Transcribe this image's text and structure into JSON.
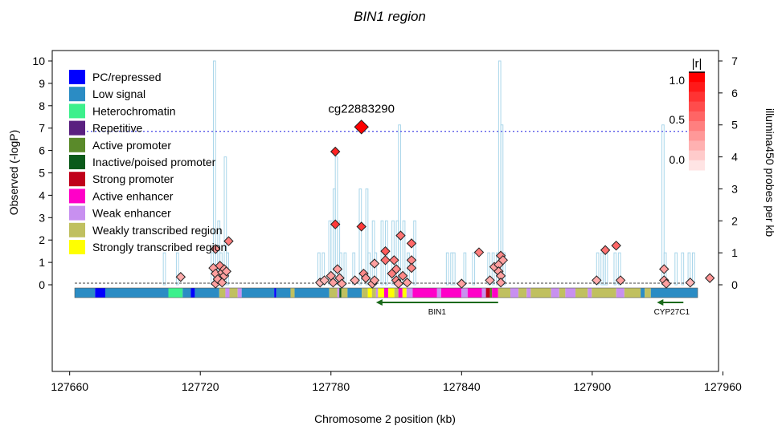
{
  "chart_data": {
    "type": "scatter",
    "title": "BIN1 region",
    "xlabel": "Chromosome 2 position (kb)",
    "ylabel": "Observed (-logP)",
    "ylabel_right": "illumina450 probes per kb",
    "xlim": [
      127652,
      127958
    ],
    "ylim": [
      -4,
      10.3
    ],
    "ylim_right": [
      0,
      7
    ],
    "x_ticks": [
      "127660",
      "127720",
      "127780",
      "127840",
      "127900",
      "127960"
    ],
    "y_ticks": [
      "0",
      "1",
      "2",
      "3",
      "4",
      "5",
      "6",
      "7",
      "8",
      "9",
      "10"
    ],
    "y_ticks_right": [
      "0",
      "1",
      "2",
      "3",
      "4",
      "5",
      "6",
      "7"
    ],
    "threshold": 7.0,
    "grid": false,
    "top_snp": {
      "label": "cg22883290",
      "x": 127794,
      "y": 7.05,
      "color": "#ff0000"
    },
    "points": [
      {
        "x": 127711,
        "y": 0.35,
        "r": 0.25
      },
      {
        "x": 127726,
        "y": 0.75,
        "r": 0.3
      },
      {
        "x": 127727,
        "y": 1.6,
        "r": 0.35
      },
      {
        "x": 127727,
        "y": 0.5,
        "r": 0.3
      },
      {
        "x": 127727,
        "y": 0.05,
        "r": 0.3
      },
      {
        "x": 127728,
        "y": 0.25,
        "r": 0.3
      },
      {
        "x": 127729,
        "y": 0.85,
        "r": 0.4
      },
      {
        "x": 127730,
        "y": 0.55,
        "r": 0.3
      },
      {
        "x": 127731,
        "y": 0.7,
        "r": 0.3
      },
      {
        "x": 127731,
        "y": 0.4,
        "r": 0.3
      },
      {
        "x": 127732,
        "y": 0.6,
        "r": 0.3
      },
      {
        "x": 127730,
        "y": 0.1,
        "r": 0.3
      },
      {
        "x": 127733,
        "y": 1.95,
        "r": 0.45
      },
      {
        "x": 127775,
        "y": 0.1,
        "r": 0.2
      },
      {
        "x": 127777,
        "y": 0.2,
        "r": 0.2
      },
      {
        "x": 127780,
        "y": 0.4,
        "r": 0.3
      },
      {
        "x": 127781,
        "y": 0.1,
        "r": 0.3
      },
      {
        "x": 127782,
        "y": 5.95,
        "r": 0.85
      },
      {
        "x": 127782,
        "y": 2.7,
        "r": 0.75
      },
      {
        "x": 127783,
        "y": 0.7,
        "r": 0.3
      },
      {
        "x": 127784,
        "y": 0.3,
        "r": 0.3
      },
      {
        "x": 127785,
        "y": 0.05,
        "r": 0.3
      },
      {
        "x": 127791,
        "y": 0.2,
        "r": 0.25
      },
      {
        "x": 127794,
        "y": 2.6,
        "r": 0.75
      },
      {
        "x": 127795,
        "y": 0.5,
        "r": 0.4
      },
      {
        "x": 127796,
        "y": 0.3,
        "r": 0.35
      },
      {
        "x": 127799,
        "y": 0.05,
        "r": 0.3
      },
      {
        "x": 127800,
        "y": 0.2,
        "r": 0.3
      },
      {
        "x": 127800,
        "y": 0.95,
        "r": 0.3
      },
      {
        "x": 127805,
        "y": 1.5,
        "r": 0.6
      },
      {
        "x": 127805,
        "y": 1.1,
        "r": 0.5
      },
      {
        "x": 127808,
        "y": 0.5,
        "r": 0.45
      },
      {
        "x": 127809,
        "y": 1.1,
        "r": 0.45
      },
      {
        "x": 127810,
        "y": 0.2,
        "r": 0.4
      },
      {
        "x": 127810,
        "y": 0.7,
        "r": 0.4
      },
      {
        "x": 127811,
        "y": 0.05,
        "r": 0.3
      },
      {
        "x": 127812,
        "y": 2.2,
        "r": 0.5
      },
      {
        "x": 127813,
        "y": 0.4,
        "r": 0.4
      },
      {
        "x": 127815,
        "y": 0.1,
        "r": 0.3
      },
      {
        "x": 127817,
        "y": 1.85,
        "r": 0.55
      },
      {
        "x": 127817,
        "y": 1.1,
        "r": 0.4
      },
      {
        "x": 127817,
        "y": 0.75,
        "r": 0.4
      },
      {
        "x": 127840,
        "y": 0.05,
        "r": 0.3
      },
      {
        "x": 127848,
        "y": 1.45,
        "r": 0.45
      },
      {
        "x": 127853,
        "y": 0.2,
        "r": 0.25
      },
      {
        "x": 127855,
        "y": 0.8,
        "r": 0.3
      },
      {
        "x": 127857,
        "y": 0.9,
        "r": 0.3
      },
      {
        "x": 127857,
        "y": 0.6,
        "r": 0.3
      },
      {
        "x": 127858,
        "y": 1.3,
        "r": 0.4
      },
      {
        "x": 127858,
        "y": 0.4,
        "r": 0.3
      },
      {
        "x": 127858,
        "y": 0.1,
        "r": 0.3
      },
      {
        "x": 127859,
        "y": 1.1,
        "r": 0.3
      },
      {
        "x": 127902,
        "y": 0.2,
        "r": 0.25
      },
      {
        "x": 127906,
        "y": 1.55,
        "r": 0.5
      },
      {
        "x": 127911,
        "y": 1.75,
        "r": 0.55
      },
      {
        "x": 127913,
        "y": 0.2,
        "r": 0.3
      },
      {
        "x": 127933,
        "y": 0.7,
        "r": 0.3
      },
      {
        "x": 127933,
        "y": 0.2,
        "r": 0.3
      },
      {
        "x": 127934,
        "y": 0.05,
        "r": 0.3
      },
      {
        "x": 127945,
        "y": 0.1,
        "r": 0.2
      },
      {
        "x": 127954,
        "y": 0.3,
        "r": 0.35
      }
    ],
    "probe_density": {
      "color": "#a9d6ea",
      "bins": [
        {
          "x0": 127703,
          "x1": 127704,
          "v": 1.0
        },
        {
          "x0": 127709,
          "x1": 127710,
          "v": 1.0
        },
        {
          "x0": 127725,
          "x1": 127726,
          "v": 1.0
        },
        {
          "x0": 127726,
          "x1": 127727,
          "v": 7.0
        },
        {
          "x0": 127727,
          "x1": 127728,
          "v": 1.0
        },
        {
          "x0": 127728,
          "x1": 127729,
          "v": 2.0
        },
        {
          "x0": 127729,
          "x1": 127730,
          "v": 1.0
        },
        {
          "x0": 127731,
          "x1": 127732,
          "v": 4.0
        },
        {
          "x0": 127732,
          "x1": 127733,
          "v": 1.0
        },
        {
          "x0": 127774,
          "x1": 127775,
          "v": 1.0
        },
        {
          "x0": 127776,
          "x1": 127777,
          "v": 1.0
        },
        {
          "x0": 127779,
          "x1": 127780,
          "v": 2.0
        },
        {
          "x0": 127780,
          "x1": 127781,
          "v": 2.0
        },
        {
          "x0": 127781,
          "x1": 127782,
          "v": 3.0
        },
        {
          "x0": 127782,
          "x1": 127783,
          "v": 4.0
        },
        {
          "x0": 127783,
          "x1": 127784,
          "v": 2.0
        },
        {
          "x0": 127784,
          "x1": 127785,
          "v": 1.0
        },
        {
          "x0": 127786,
          "x1": 127787,
          "v": 1.0
        },
        {
          "x0": 127790,
          "x1": 127791,
          "v": 1.0
        },
        {
          "x0": 127793,
          "x1": 127794,
          "v": 3.0
        },
        {
          "x0": 127796,
          "x1": 127797,
          "v": 3.0
        },
        {
          "x0": 127797,
          "x1": 127798,
          "v": 1.0
        },
        {
          "x0": 127799,
          "x1": 127800,
          "v": 2.0
        },
        {
          "x0": 127800,
          "x1": 127801,
          "v": 1.0
        },
        {
          "x0": 127803,
          "x1": 127804,
          "v": 2.0
        },
        {
          "x0": 127805,
          "x1": 127806,
          "v": 2.0
        },
        {
          "x0": 127808,
          "x1": 127809,
          "v": 2.0
        },
        {
          "x0": 127810,
          "x1": 127811,
          "v": 2.0
        },
        {
          "x0": 127811,
          "x1": 127812,
          "v": 5.0
        },
        {
          "x0": 127813,
          "x1": 127814,
          "v": 2.0
        },
        {
          "x0": 127815,
          "x1": 127816,
          "v": 1.0
        },
        {
          "x0": 127818,
          "x1": 127819,
          "v": 2.0
        },
        {
          "x0": 127833,
          "x1": 127834,
          "v": 1.0
        },
        {
          "x0": 127835,
          "x1": 127836,
          "v": 1.0
        },
        {
          "x0": 127836,
          "x1": 127837,
          "v": 1.0
        },
        {
          "x0": 127841,
          "x1": 127842,
          "v": 1.0
        },
        {
          "x0": 127845,
          "x1": 127846,
          "v": 1.0
        },
        {
          "x0": 127852,
          "x1": 127853,
          "v": 1.0
        },
        {
          "x0": 127854,
          "x1": 127855,
          "v": 1.0
        },
        {
          "x0": 127856,
          "x1": 127857,
          "v": 1.0
        },
        {
          "x0": 127857,
          "x1": 127858,
          "v": 7.0
        },
        {
          "x0": 127858,
          "x1": 127859,
          "v": 5.0
        },
        {
          "x0": 127859,
          "x1": 127860,
          "v": 1.0
        },
        {
          "x0": 127902,
          "x1": 127903,
          "v": 1.0
        },
        {
          "x0": 127904,
          "x1": 127905,
          "v": 1.0
        },
        {
          "x0": 127905,
          "x1": 127906,
          "v": 1.0
        },
        {
          "x0": 127906,
          "x1": 127907,
          "v": 1.0
        },
        {
          "x0": 127910,
          "x1": 127911,
          "v": 1.0
        },
        {
          "x0": 127912,
          "x1": 127913,
          "v": 1.0
        },
        {
          "x0": 127932,
          "x1": 127933,
          "v": 5.0
        },
        {
          "x0": 127933,
          "x1": 127934,
          "v": 1.0
        },
        {
          "x0": 127938,
          "x1": 127939,
          "v": 1.0
        },
        {
          "x0": 127941,
          "x1": 127942,
          "v": 1.0
        },
        {
          "x0": 127944,
          "x1": 127945,
          "v": 1.0
        },
        {
          "x0": 127946,
          "x1": 127947,
          "v": 1.0
        }
      ]
    },
    "chromatin_track": [
      {
        "x0": 127652,
        "x1": 127662,
        "state": "Low signal"
      },
      {
        "x0": 127662,
        "x1": 127667,
        "state": "PC/repressed"
      },
      {
        "x0": 127667,
        "x1": 127698,
        "state": "Low signal"
      },
      {
        "x0": 127698,
        "x1": 127705,
        "state": "Heterochromatin"
      },
      {
        "x0": 127705,
        "x1": 127709,
        "state": "Low signal"
      },
      {
        "x0": 127709,
        "x1": 127711,
        "state": "PC/repressed"
      },
      {
        "x0": 127711,
        "x1": 127723,
        "state": "Low signal"
      },
      {
        "x0": 127723,
        "x1": 127726,
        "state": "Weakly transcribed region"
      },
      {
        "x0": 127726,
        "x1": 127728,
        "state": "Weak enhancer"
      },
      {
        "x0": 127728,
        "x1": 127732,
        "state": "Weakly transcribed region"
      },
      {
        "x0": 127732,
        "x1": 127734,
        "state": "Weak enhancer"
      },
      {
        "x0": 127734,
        "x1": 127750,
        "state": "Low signal"
      },
      {
        "x0": 127750,
        "x1": 127751,
        "state": "PC/repressed"
      },
      {
        "x0": 127751,
        "x1": 127758,
        "state": "Low signal"
      },
      {
        "x0": 127758,
        "x1": 127760,
        "state": "Weakly transcribed region"
      },
      {
        "x0": 127760,
        "x1": 127777,
        "state": "Low signal"
      },
      {
        "x0": 127777,
        "x1": 127781,
        "state": "Weakly transcribed region"
      },
      {
        "x0": 127781,
        "x1": 127782,
        "state": "Weak enhancer"
      },
      {
        "x0": 127782,
        "x1": 127783,
        "state": "Inactive/poised promoter"
      },
      {
        "x0": 127783,
        "x1": 127786,
        "state": "Weakly transcribed region"
      },
      {
        "x0": 127786,
        "x1": 127793,
        "state": "Low signal"
      },
      {
        "x0": 127793,
        "x1": 127796,
        "state": "Weakly transcribed region"
      },
      {
        "x0": 127796,
        "x1": 127798,
        "state": "Strongly transcribed region"
      },
      {
        "x0": 127798,
        "x1": 127800,
        "state": "Weakly transcribed region"
      },
      {
        "x0": 127800,
        "x1": 127801,
        "state": "Weak enhancer"
      },
      {
        "x0": 127801,
        "x1": 127804,
        "state": "Strongly transcribed region"
      },
      {
        "x0": 127804,
        "x1": 127806,
        "state": "Active enhancer"
      },
      {
        "x0": 127806,
        "x1": 127809,
        "state": "Strongly transcribed region"
      },
      {
        "x0": 127809,
        "x1": 127811,
        "state": "Weakly transcribed region"
      },
      {
        "x0": 127811,
        "x1": 127813,
        "state": "Active enhancer"
      },
      {
        "x0": 127813,
        "x1": 127815,
        "state": "Strongly transcribed region"
      },
      {
        "x0": 127815,
        "x1": 127818,
        "state": "Weak enhancer"
      },
      {
        "x0": 127818,
        "x1": 127830,
        "state": "Active enhancer"
      },
      {
        "x0": 127830,
        "x1": 127832,
        "state": "Weak enhancer"
      },
      {
        "x0": 127832,
        "x1": 127842,
        "state": "Active enhancer"
      },
      {
        "x0": 127842,
        "x1": 127845,
        "state": "Weak enhancer"
      },
      {
        "x0": 127845,
        "x1": 127852,
        "state": "Active enhancer"
      },
      {
        "x0": 127852,
        "x1": 127854,
        "state": "Weak enhancer"
      },
      {
        "x0": 127854,
        "x1": 127856,
        "state": "Strong promoter"
      },
      {
        "x0": 127856,
        "x1": 127857,
        "state": "Active promoter"
      },
      {
        "x0": 127857,
        "x1": 127860,
        "state": "Active enhancer"
      },
      {
        "x0": 127860,
        "x1": 127866,
        "state": "Weakly transcribed region"
      },
      {
        "x0": 127866,
        "x1": 127870,
        "state": "Weak enhancer"
      },
      {
        "x0": 127870,
        "x1": 127874,
        "state": "Weakly transcribed region"
      },
      {
        "x0": 127874,
        "x1": 127876,
        "state": "Weak enhancer"
      },
      {
        "x0": 127876,
        "x1": 127886,
        "state": "Weakly transcribed region"
      },
      {
        "x0": 127886,
        "x1": 127890,
        "state": "Weak enhancer"
      },
      {
        "x0": 127890,
        "x1": 127893,
        "state": "Weakly transcribed region"
      },
      {
        "x0": 127893,
        "x1": 127898,
        "state": "Weak enhancer"
      },
      {
        "x0": 127898,
        "x1": 127904,
        "state": "Weakly transcribed region"
      },
      {
        "x0": 127904,
        "x1": 127906,
        "state": "Weak enhancer"
      },
      {
        "x0": 127906,
        "x1": 127918,
        "state": "Weakly transcribed region"
      },
      {
        "x0": 127918,
        "x1": 127922,
        "state": "Weak enhancer"
      },
      {
        "x0": 127922,
        "x1": 127930,
        "state": "Weakly transcribed region"
      },
      {
        "x0": 127930,
        "x1": 127932,
        "state": "Low signal"
      },
      {
        "x0": 127932,
        "x1": 127935,
        "state": "Weakly transcribed region"
      },
      {
        "x0": 127935,
        "x1": 127958,
        "state": "Low signal"
      }
    ],
    "genes": [
      {
        "name": "BIN1",
        "x_start": 127860,
        "x_end": 127800,
        "strand": "-"
      },
      {
        "name": "CYP27C1",
        "x_start": 127951,
        "x_end": 127938,
        "strand": "-"
      }
    ],
    "legend": {
      "placement": "top-left",
      "entries": [
        {
          "label": "PC/repressed",
          "color": "#0000ff"
        },
        {
          "label": "Low signal",
          "color": "#2b8cc4"
        },
        {
          "label": "Heterochromatin",
          "color": "#3cf08c"
        },
        {
          "label": "Repetitive",
          "color": "#5a2080"
        },
        {
          "label": "Active promoter",
          "color": "#5a8a2a"
        },
        {
          "label": "Inactive/poised promoter",
          "color": "#0b5a1a"
        },
        {
          "label": "Strong promoter",
          "color": "#c0001a"
        },
        {
          "label": "Active enhancer",
          "color": "#ff00c8"
        },
        {
          "label": "Weak enhancer",
          "color": "#c890f0"
        },
        {
          "label": "Weakly transcribed region",
          "color": "#c0c060"
        },
        {
          "label": "Strongly transcribed region",
          "color": "#ffff00"
        }
      ]
    },
    "r_scale": {
      "title": "|r|",
      "ticks": [
        "1.0",
        "0.5",
        "0.0"
      ],
      "low_color": "#ffe4e4",
      "high_color": "#ff0000",
      "placement": "top-right"
    }
  }
}
